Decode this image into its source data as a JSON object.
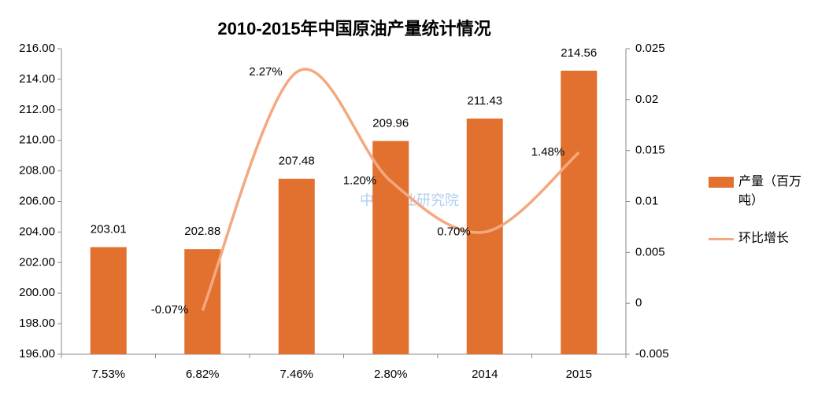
{
  "chart_data": {
    "type": "bar",
    "title": "2010-2015年中国原油产量统计情况",
    "categories": [
      "7.53%",
      "6.82%",
      "7.46%",
      "2.80%",
      "2014",
      "2015"
    ],
    "series": [
      {
        "name": "产量（百万吨）",
        "type": "bar",
        "color": "#e2712f",
        "values": [
          203.01,
          202.88,
          207.48,
          209.96,
          211.43,
          214.56
        ]
      },
      {
        "name": "环比增长",
        "type": "line",
        "axis": "y2",
        "color": "#f4a880",
        "values": [
          null,
          -0.0007,
          0.0227,
          0.012,
          0.007,
          0.0148
        ],
        "value_labels": [
          null,
          "-0.07%",
          "2.27%",
          "1.20%",
          "0.70%",
          "1.48%"
        ]
      }
    ],
    "ylim": [
      196,
      216
    ],
    "yticks": [
      {
        "value": 196,
        "label": "196.00"
      },
      {
        "value": 198,
        "label": "198.00"
      },
      {
        "value": 200,
        "label": "200.00"
      },
      {
        "value": 202,
        "label": "202.00"
      },
      {
        "value": 204,
        "label": "204.00"
      },
      {
        "value": 206,
        "label": "206.00"
      },
      {
        "value": 208,
        "label": "208.00"
      },
      {
        "value": 210,
        "label": "210.00"
      },
      {
        "value": 212,
        "label": "212.00"
      },
      {
        "value": 214,
        "label": "214.00"
      },
      {
        "value": 216,
        "label": "216.00"
      }
    ],
    "y2lim": [
      -0.005,
      0.025
    ],
    "y2ticks": [
      -0.005,
      0,
      0.005,
      0.01,
      0.015,
      0.02,
      0.025
    ],
    "grid": false,
    "legend": "right",
    "watermark": "中商产业研究院"
  }
}
